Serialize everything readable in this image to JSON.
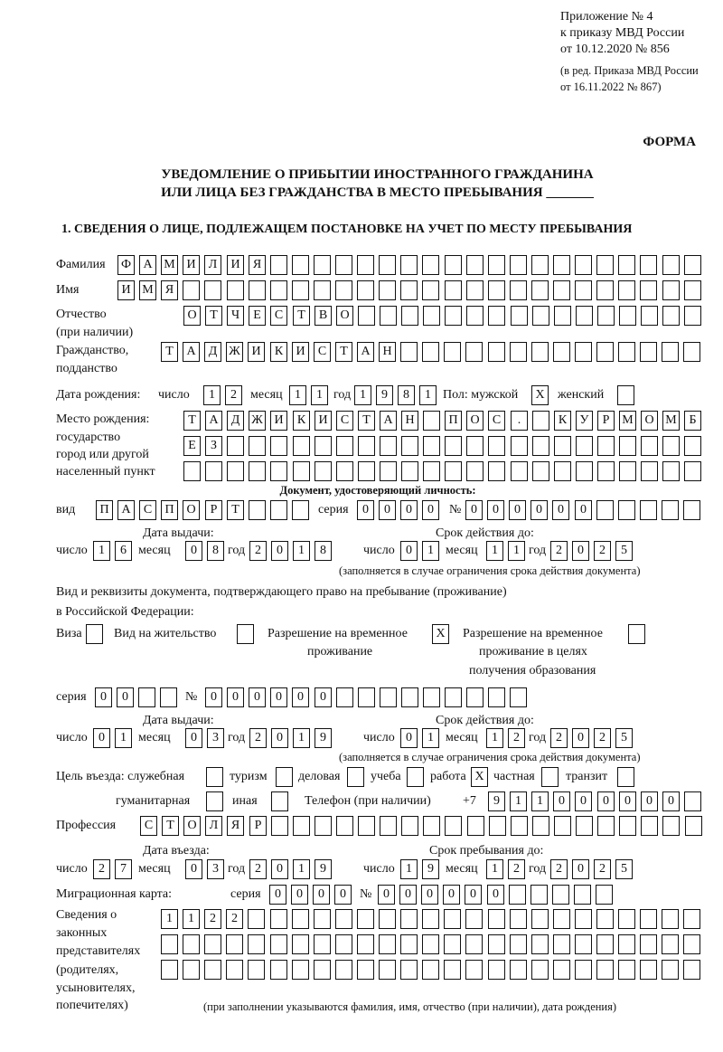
{
  "header": {
    "appendix": "Приложение № 4",
    "order": "к приказу МВД России",
    "order_date": "от 10.12.2020 № 856",
    "amend1": "(в ред. Приказа МВД России",
    "amend2": "от 16.11.2022 № 867)",
    "form": "ФОРМА",
    "title1": "УВЕДОМЛЕНИЕ О ПРИБЫТИИ ИНОСТРАННОГО ГРАЖДАНИНА",
    "title2": "ИЛИ ЛИЦА БЕЗ ГРАЖДАНСТВА В МЕСТО ПРЕБЫВАНИЯ _______",
    "section1": "1. СВЕДЕНИЯ О ЛИЦЕ, ПОДЛЕЖАЩЕМ ПОСТАНОВКЕ НА УЧЕТ ПО МЕСТУ ПРЕБЫВАНИЯ"
  },
  "labels": {
    "surname": "Фамилия",
    "name": "Имя",
    "patronymic1": "Отчество",
    "patronymic2": "(при наличии)",
    "citizenship1": "Гражданство,",
    "citizenship2": "подданство",
    "birth_date": "Дата рождения:",
    "day": "число",
    "month": "месяц",
    "year": "год",
    "sex_male": "Пол: мужской",
    "sex_female": "женский",
    "birthplace1": "Место рождения:",
    "birthplace2": "государство",
    "birthplace3": "город или другой",
    "birthplace4": "населенный пункт",
    "id_doc": "Документ, удостоверяющий личность:",
    "doc_type": "вид",
    "series": "серия",
    "number": "№",
    "issue_date": "Дата выдачи:",
    "valid_until": "Срок действия до:",
    "validity_note": "(заполняется в случае ограничения срока действия документа)",
    "permit_doc1": "Вид и реквизиты документа, подтверждающего право на пребывание (проживание)",
    "permit_doc2": "в Российской Федерации:",
    "visa": "Виза",
    "residence": "Вид на жительство",
    "temp1": "Разрешение на временное",
    "temp2": "проживание",
    "edu1": "Разрешение на временное",
    "edu2": "проживание в целях",
    "edu3": "получения образования",
    "purpose": "Цель въезда: служебная",
    "tourism": "туризм",
    "business": "деловая",
    "study": "учеба",
    "work": "работа",
    "private": "частная",
    "transit": "транзит",
    "humanitarian": "гуманитарная",
    "other": "иная",
    "phone": "Телефон (при наличии)",
    "phone_prefix": "+7",
    "profession": "Профессия",
    "entry_date": "Дата въезда:",
    "stay_until": "Срок пребывания до:",
    "migration_card": "Миграционная карта:",
    "reps1": "Сведения о",
    "reps2": "законных",
    "reps3": "представителях",
    "reps4": "(родителях,",
    "reps5": "усыновителях,",
    "reps6": "попечителях)",
    "reps_note": "(при заполнении указываются фамилия, имя, отчество (при наличии), дата рождения)"
  },
  "person": {
    "surname": "ФАМИЛИЯ",
    "name": "ИМЯ",
    "patronymic": "ОТЧЕСТВО",
    "citizenship": "ТАДЖИКИСТАН",
    "birth_day": "12",
    "birth_month": "11",
    "birth_year": "1981",
    "sex_male": "X",
    "sex_female": "",
    "birthplace": [
      "ТАДЖИКИСТАН ПОС. КУРМОМБ",
      "ЕЗ",
      ""
    ],
    "doc_type": "ПАСПОРТ",
    "doc_series": "0000",
    "doc_number": "000000",
    "doc_issue_day": "16",
    "doc_issue_month": "08",
    "doc_issue_year": "2018",
    "doc_valid_day": "01",
    "doc_valid_month": "11",
    "doc_valid_year": "2025",
    "visa": "",
    "residence": "",
    "temp_residence": "X",
    "temp_residence_edu": "",
    "permit_series": "00",
    "permit_number": "000000",
    "permit_issue_day": "01",
    "permit_issue_month": "03",
    "permit_issue_year": "2019",
    "permit_valid_day": "01",
    "permit_valid_month": "12",
    "permit_valid_year": "2025",
    "purpose_official": "",
    "purpose_tourism": "",
    "purpose_business": "",
    "purpose_study": "",
    "purpose_work": "X",
    "purpose_private": "",
    "purpose_transit": "",
    "purpose_humanitarian": "",
    "purpose_other": "",
    "phone": "911000000",
    "profession": "СТОЛЯР",
    "entry_day": "27",
    "entry_month": "03",
    "entry_year": "2019",
    "stay_day": "19",
    "stay_month": "12",
    "stay_year": "2025",
    "mc_series": "0000",
    "mc_number": "000000",
    "representatives": [
      "1122",
      "",
      ""
    ]
  }
}
